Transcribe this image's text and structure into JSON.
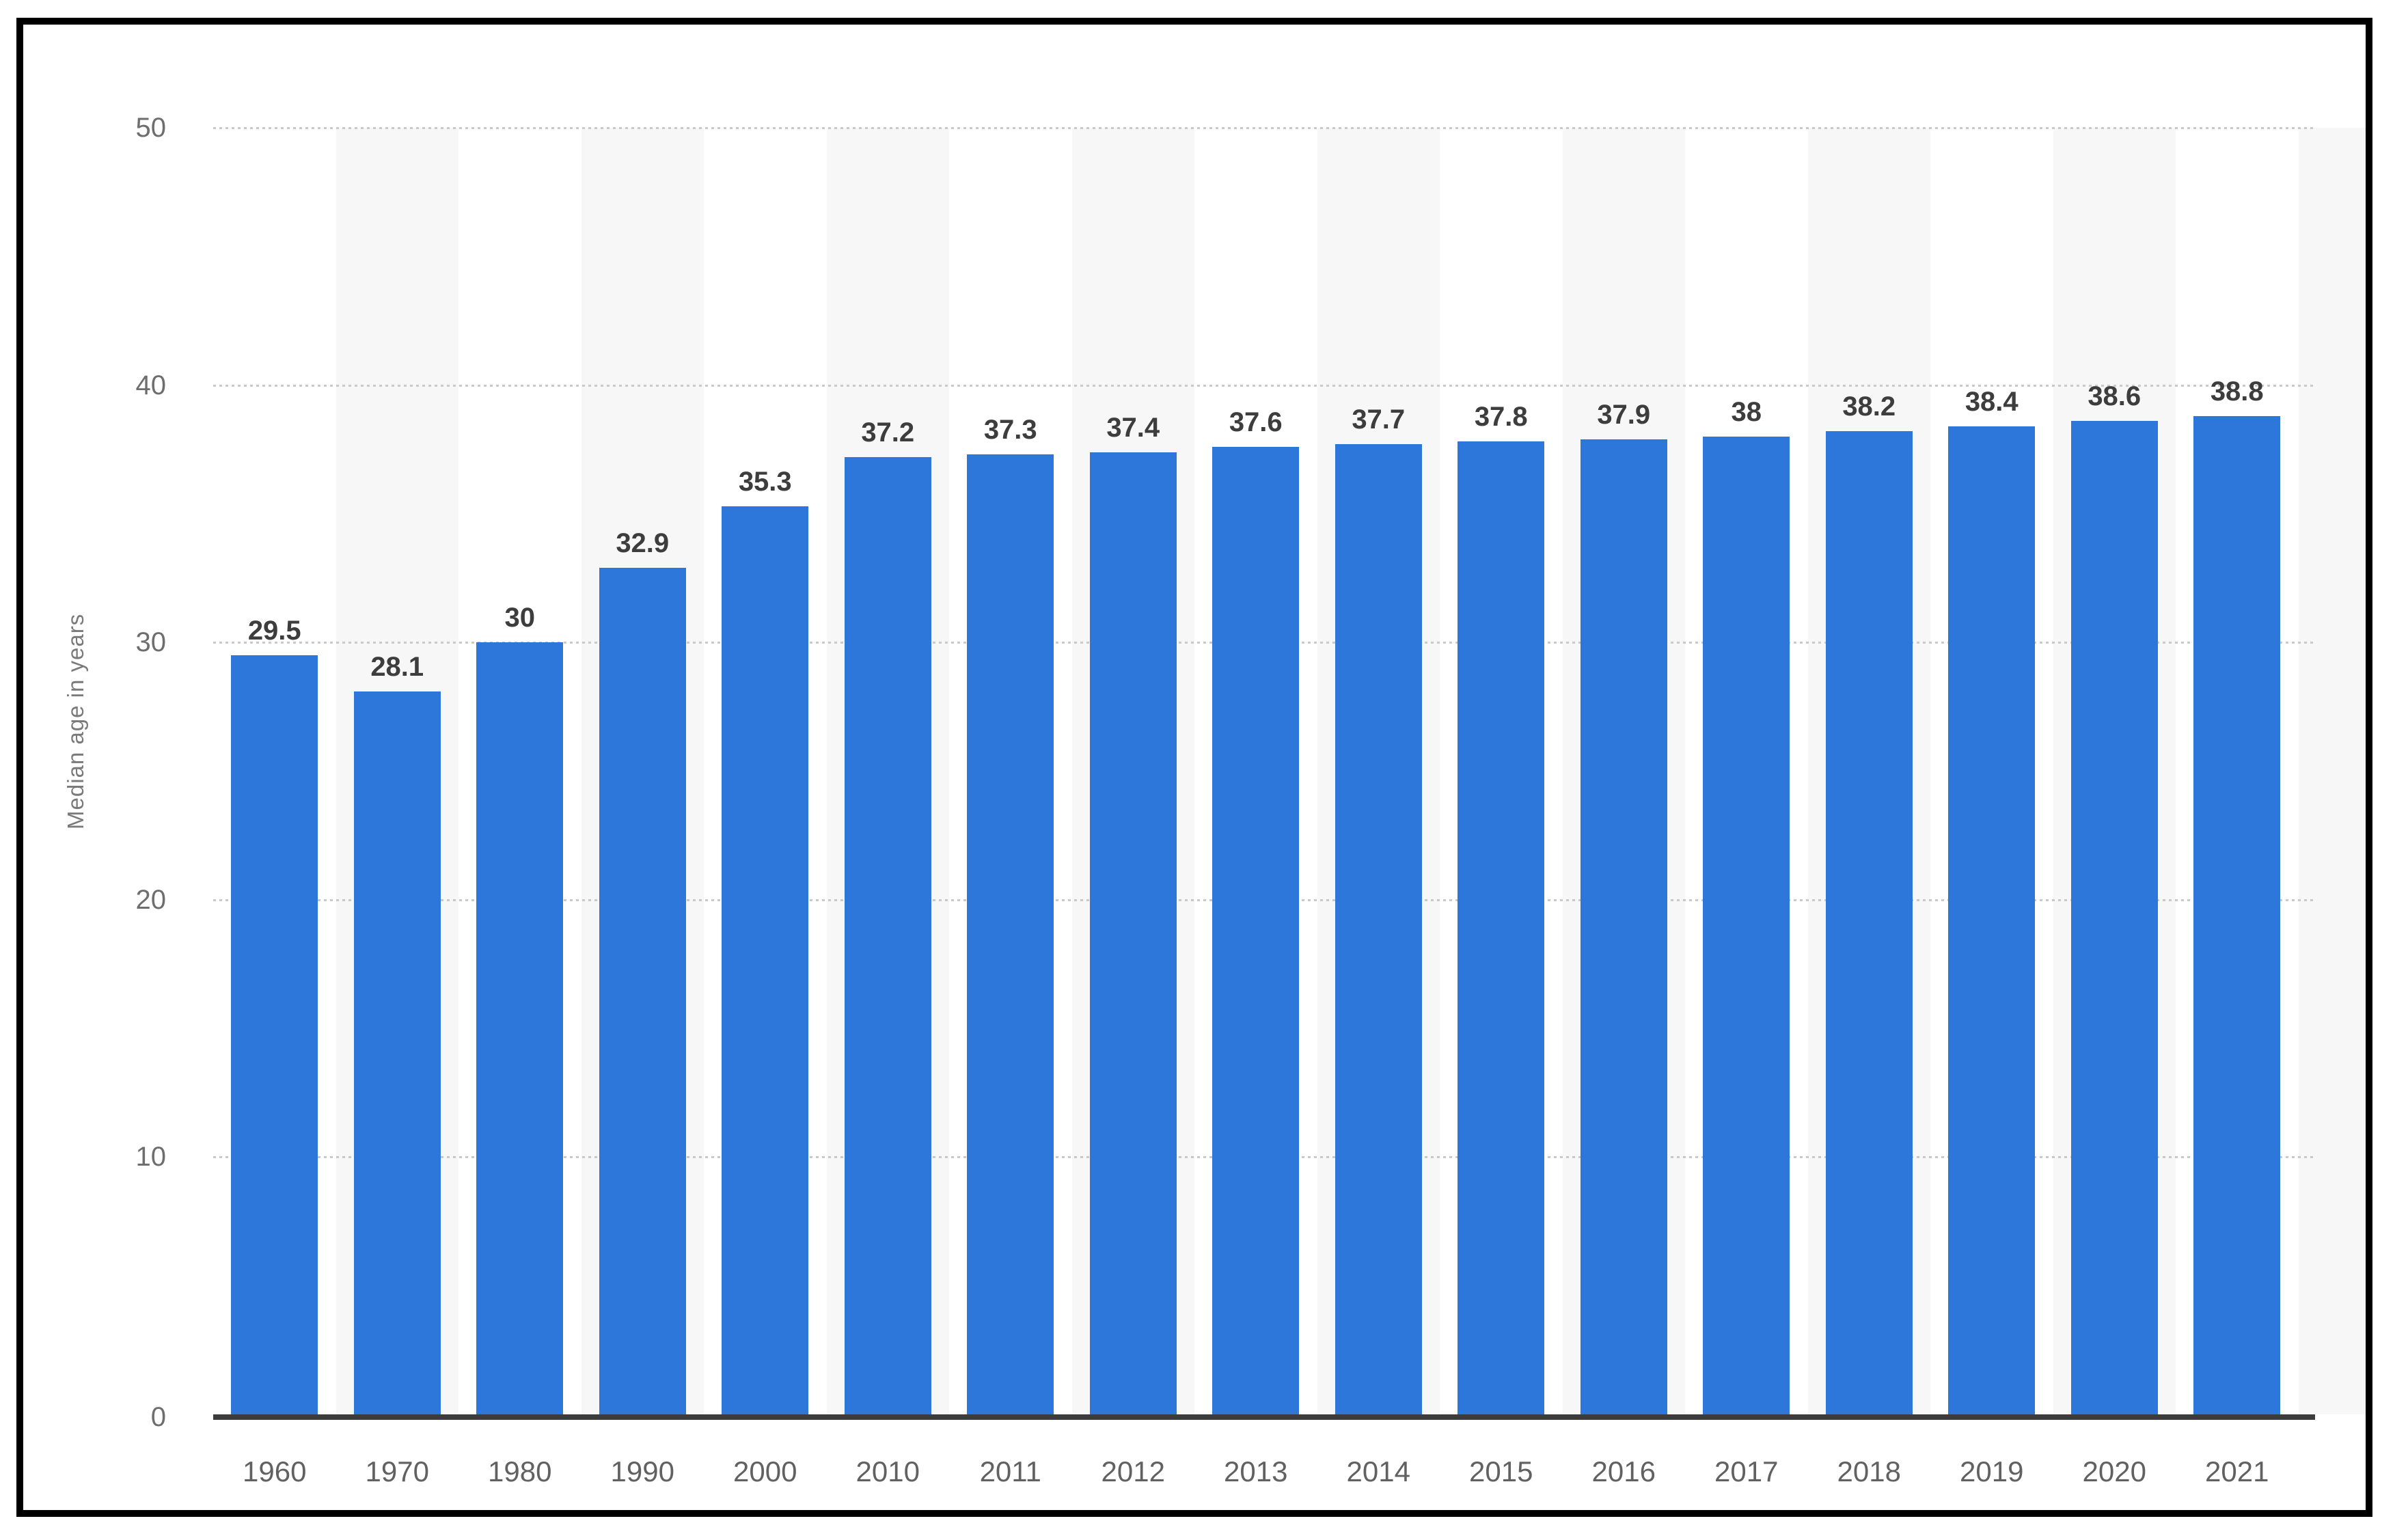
{
  "chart_data": {
    "type": "bar",
    "title": "",
    "xlabel": "",
    "ylabel": "Median age in years",
    "categories": [
      "1960",
      "1970",
      "1980",
      "1990",
      "2000",
      "2010",
      "2011",
      "2012",
      "2013",
      "2014",
      "2015",
      "2016",
      "2017",
      "2018",
      "2019",
      "2020",
      "2021"
    ],
    "values": [
      29.5,
      28.1,
      30,
      32.9,
      35.3,
      37.2,
      37.3,
      37.4,
      37.6,
      37.7,
      37.8,
      37.9,
      38,
      38.2,
      38.4,
      38.6,
      38.8
    ],
    "data_labels": [
      "29.5",
      "28.1",
      "30",
      "32.9",
      "35.3",
      "37.2",
      "37.3",
      "37.4",
      "37.6",
      "37.7",
      "37.8",
      "37.9",
      "38",
      "38.2",
      "38.4",
      "38.6",
      "38.8"
    ],
    "y_ticks": [
      "0",
      "10",
      "20",
      "30",
      "40",
      "50"
    ],
    "ylim": [
      0,
      50
    ],
    "grid": "horizontal-dotted",
    "legend_position": "none",
    "bar_color": "#2d77db",
    "band_color": "#f7f7f7",
    "gridline_color": "#c9c9c9",
    "axis_line_color": "#3c3c3c",
    "value_label_color": "#3d3d3d",
    "tick_label_color": "#6e6e6e",
    "frame_border_color": "#000000"
  }
}
